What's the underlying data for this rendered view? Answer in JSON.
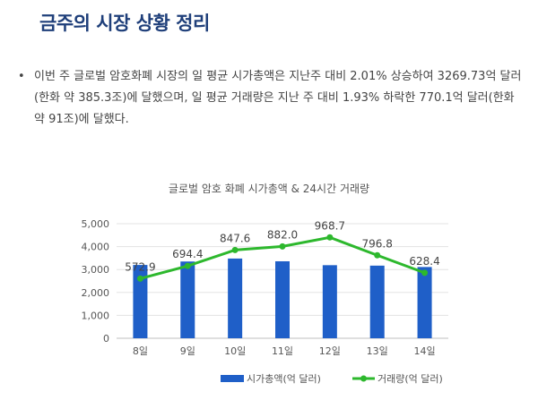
{
  "page": {
    "title": "금주의 시장 상황 정리",
    "bullet": "•",
    "summary": "이번 주 글로벌 암호화폐 시장의 일 평균 시가총액은 지난주 대비 2.01% 상승하여 3269.73억 달러(한화 약 385.3조)에 달했으며, 일 평균 거래량은 지난 주 대비 1.93% 하락한 770.1억 달러(한화 약 91조)에 달했다."
  },
  "colors": {
    "bar": "#1f5fc8",
    "line": "#2db82d",
    "title": "#1f3f7a"
  },
  "chart_data": {
    "type": "bar",
    "title": "글로벌 암호 화폐 시가총액 & 24시간 거래량",
    "categories": [
      "8일",
      "9일",
      "10일",
      "11일",
      "12일",
      "13일",
      "14일"
    ],
    "ylim": [
      0,
      5000
    ],
    "yticks": [
      "0",
      "1,000",
      "2,000",
      "3,000",
      "4,000",
      "5,000"
    ],
    "ytick_values": [
      0,
      1000,
      2000,
      3000,
      4000,
      5000
    ],
    "grid": true,
    "legend_position": "bottom",
    "series": [
      {
        "name": "시가총액(억 달러)",
        "type": "bar",
        "values": [
          3200,
          3350,
          3480,
          3360,
          3190,
          3170,
          3110
        ]
      },
      {
        "name": "거래량(억 달러)",
        "type": "line",
        "values": [
          572.9,
          694.4,
          847.6,
          882.0,
          968.7,
          796.8,
          628.4
        ],
        "labels": [
          "572.9",
          "694.4",
          "847.6",
          "882.0",
          "968.7",
          "796.8",
          "628.4"
        ]
      }
    ]
  }
}
